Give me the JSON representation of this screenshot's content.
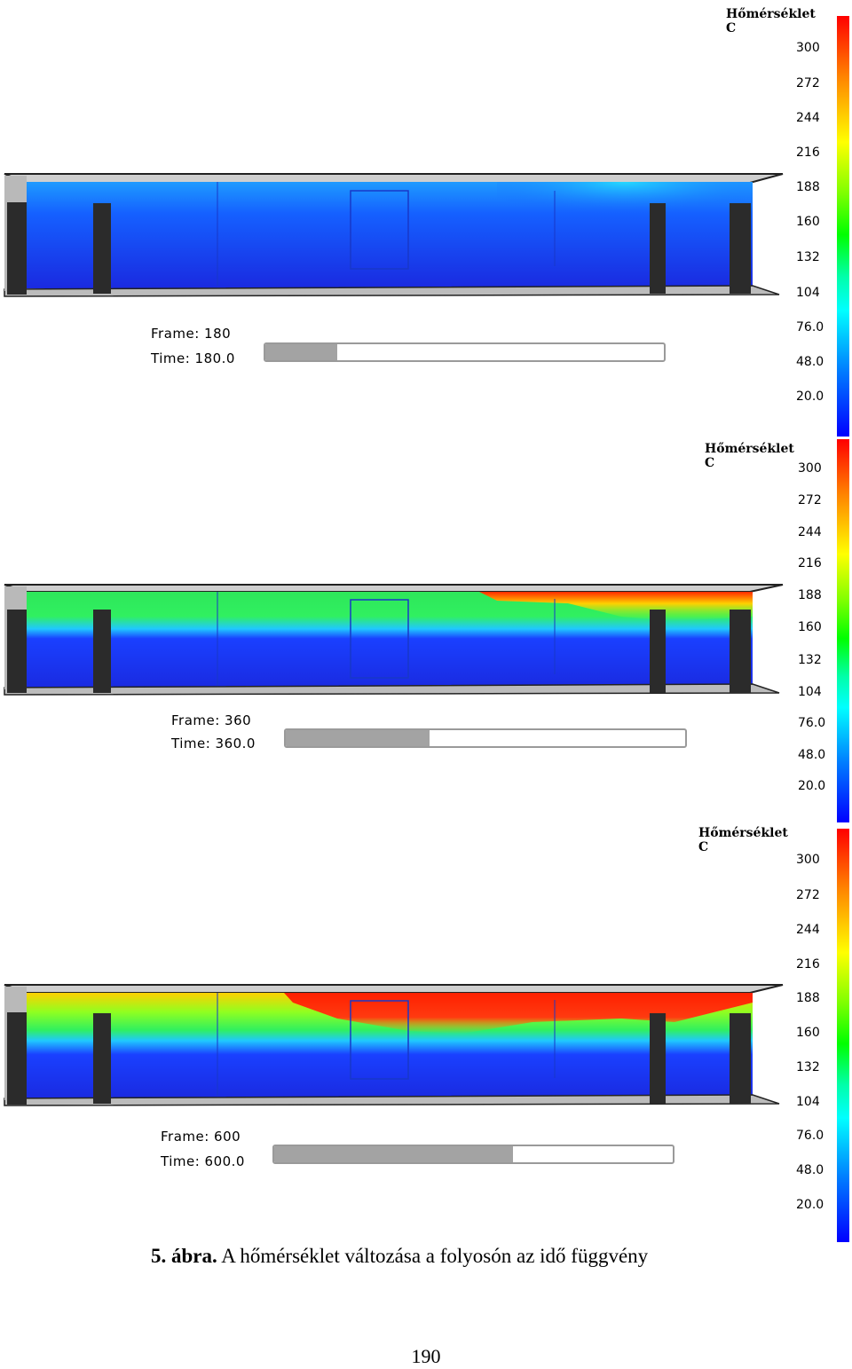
{
  "legend": {
    "title": "Hőmérséklet",
    "unit": "C",
    "ticks": [
      "300",
      "272",
      "244",
      "216",
      "188",
      "160",
      "132",
      "104",
      "76.0",
      "48.0",
      "20.0"
    ],
    "colors": {
      "high": "#ff0000",
      "mid": "#00ff00",
      "low": "#0000ff"
    }
  },
  "frames": [
    {
      "frame_label": "Frame: 180",
      "time_label": "Time: 180.0",
      "progress": 0.18
    },
    {
      "frame_label": "Frame: 360",
      "time_label": "Time: 360.0",
      "progress": 0.36
    },
    {
      "frame_label": "Frame: 600",
      "time_label": "Time: 600.0",
      "progress": 0.6
    }
  ],
  "caption": {
    "prefix": "5. ábra.",
    "text": " A hőmérséklet változása a folyosón az idő függvény"
  },
  "page_number": "190"
}
